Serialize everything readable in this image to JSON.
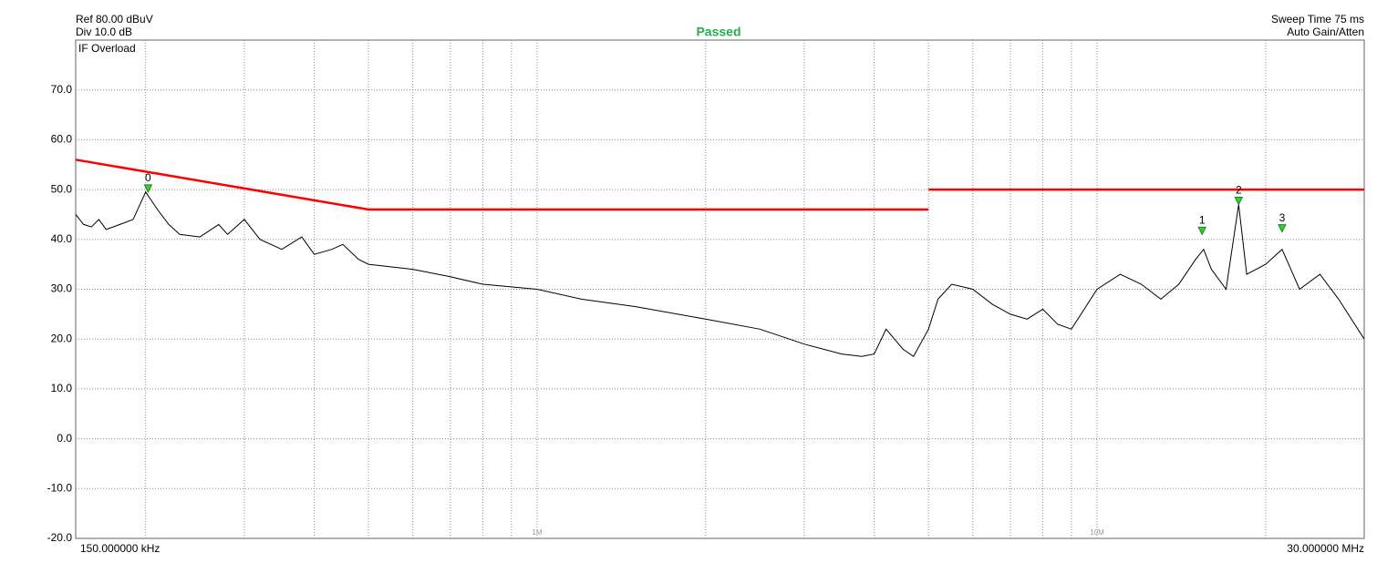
{
  "chart_data": {
    "type": "line",
    "ref_label": "Ref 80.00 dBuV",
    "div_label": "Div 10.0 dB",
    "status_label": "IF Overload",
    "title": "Passed",
    "title_color": "#22b14c",
    "sweep_label": "Sweep Time 75 ms",
    "gain_label": "Auto Gain/Atten",
    "x_start_label": "150.000000 kHz",
    "x_end_label": "30.000000 MHz",
    "log_x": true,
    "grid": true,
    "xlim": [
      0.15,
      30
    ],
    "ylim": [
      -20,
      80
    ],
    "yticks": [
      {
        "value": -20,
        "label": "-20.0"
      },
      {
        "value": -10,
        "label": "-10.0"
      },
      {
        "value": 0,
        "label": "0.0"
      },
      {
        "value": 10,
        "label": "10.0"
      },
      {
        "value": 20,
        "label": "20.0"
      },
      {
        "value": 30,
        "label": "30.0"
      },
      {
        "value": 40,
        "label": "40.0"
      },
      {
        "value": 50,
        "label": "50.0"
      },
      {
        "value": 60,
        "label": "60.0"
      },
      {
        "value": 70,
        "label": "70.0"
      }
    ],
    "xticks": [
      {
        "value": 1,
        "label": "1M"
      },
      {
        "value": 10,
        "label": "10M"
      }
    ],
    "xgrid": [
      0.2,
      0.3,
      0.4,
      0.5,
      0.6,
      0.7,
      0.8,
      0.9,
      1,
      2,
      3,
      4,
      5,
      6,
      7,
      8,
      9,
      10,
      20
    ],
    "series": [
      {
        "color": "#000000",
        "x": [
          0.15,
          0.155,
          0.16,
          0.165,
          0.17,
          0.18,
          0.19,
          0.2,
          0.21,
          0.22,
          0.23,
          0.25,
          0.27,
          0.28,
          0.3,
          0.32,
          0.35,
          0.38,
          0.4,
          0.43,
          0.45,
          0.48,
          0.5,
          0.6,
          0.7,
          0.8,
          1.0,
          1.2,
          1.5,
          2.0,
          2.5,
          3.0,
          3.5,
          3.8,
          4.0,
          4.2,
          4.5,
          4.7,
          5.0,
          5.2,
          5.5,
          6,
          6.5,
          7,
          7.5,
          8,
          8.5,
          9,
          10,
          11,
          12,
          13,
          14,
          15,
          15.5,
          16,
          17,
          17.9,
          18.5,
          20,
          21.4,
          23,
          25,
          27,
          30
        ],
        "values": [
          45,
          43,
          42.5,
          44,
          42,
          43,
          44,
          49.5,
          46,
          43,
          41,
          40.5,
          43,
          41,
          44,
          40,
          38,
          40.5,
          37,
          38,
          39,
          36,
          35,
          34,
          32.5,
          31,
          30,
          28,
          26.5,
          24,
          22,
          19,
          17,
          16.5,
          17,
          22,
          18,
          16.5,
          22,
          28,
          31,
          30,
          27,
          25,
          24,
          26,
          23,
          22,
          30,
          33,
          31,
          28,
          31,
          36,
          38,
          34,
          30,
          47,
          33,
          35,
          38,
          30,
          33,
          28,
          20
        ]
      },
      {
        "color": "#ff0000",
        "x": [
          0.15,
          0.5,
          5,
          null,
          5,
          30
        ],
        "values": [
          56,
          46,
          46,
          null,
          50,
          50
        ]
      }
    ],
    "markers": {
      "color": "#22dd22",
      "labels": [
        "0",
        "1",
        "2",
        "3"
      ],
      "x": [
        0.202,
        15.4,
        17.9,
        21.4
      ],
      "values": [
        49.5,
        41,
        47,
        41.5
      ]
    }
  }
}
